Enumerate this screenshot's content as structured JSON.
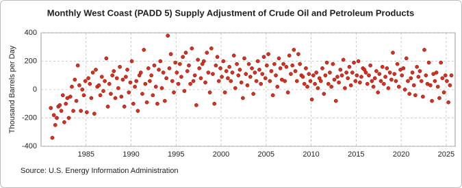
{
  "chart_data": {
    "type": "scatter",
    "title": "Monthly West Coast (PADD 5) Supply Adjustment of Crude Oil and Petroleum Products",
    "y_label": "Thousand Barrels per Day",
    "source": "Source: U.S. Energy Information Administration",
    "color": "#d7301f",
    "grid": true,
    "xlim": [
      1980,
      2026
    ],
    "xticks": [
      1985,
      1990,
      1995,
      2000,
      2005,
      2010,
      2015,
      2020,
      2025
    ],
    "ylim": [
      -400,
      400
    ],
    "yticks": [
      -400,
      -200,
      0,
      200,
      400
    ],
    "x": [
      1981.08,
      1981.25,
      1981.42,
      1981.58,
      1981.75,
      1981.92,
      1982.08,
      1982.25,
      1982.42,
      1982.58,
      1982.75,
      1982.92,
      1983.08,
      1983.25,
      1983.42,
      1983.58,
      1983.75,
      1983.92,
      1984.08,
      1984.25,
      1984.42,
      1984.58,
      1984.75,
      1984.92,
      1985.08,
      1985.25,
      1985.42,
      1985.58,
      1985.75,
      1985.92,
      1986.08,
      1986.25,
      1986.42,
      1986.58,
      1986.75,
      1986.92,
      1987.08,
      1987.25,
      1987.42,
      1987.58,
      1987.75,
      1987.92,
      1988.08,
      1988.25,
      1988.42,
      1988.58,
      1988.75,
      1988.92,
      1989.08,
      1989.25,
      1989.42,
      1989.58,
      1989.75,
      1989.92,
      1990.08,
      1990.25,
      1990.42,
      1990.58,
      1990.75,
      1990.92,
      1991.08,
      1991.25,
      1991.42,
      1991.58,
      1991.75,
      1991.92,
      1992.08,
      1992.25,
      1992.42,
      1992.58,
      1992.75,
      1992.92,
      1993.08,
      1993.25,
      1993.42,
      1993.58,
      1993.75,
      1993.92,
      1994.08,
      1994.25,
      1994.42,
      1994.58,
      1994.75,
      1994.92,
      1995.08,
      1995.25,
      1995.42,
      1995.58,
      1995.75,
      1995.92,
      1996.08,
      1996.25,
      1996.42,
      1996.58,
      1996.75,
      1996.92,
      1997.08,
      1997.25,
      1997.42,
      1997.58,
      1997.75,
      1997.92,
      1998.08,
      1998.25,
      1998.42,
      1998.58,
      1998.75,
      1998.92,
      1999.08,
      1999.25,
      1999.42,
      1999.58,
      1999.75,
      1999.92,
      2000.08,
      2000.25,
      2000.42,
      2000.58,
      2000.75,
      2000.92,
      2001.08,
      2001.25,
      2001.42,
      2001.58,
      2001.75,
      2001.92,
      2002.08,
      2002.25,
      2002.42,
      2002.58,
      2002.75,
      2002.92,
      2003.08,
      2003.25,
      2003.42,
      2003.58,
      2003.75,
      2003.92,
      2004.08,
      2004.25,
      2004.42,
      2004.58,
      2004.75,
      2004.92,
      2005.08,
      2005.25,
      2005.42,
      2005.58,
      2005.75,
      2005.92,
      2006.08,
      2006.25,
      2006.42,
      2006.58,
      2006.75,
      2006.92,
      2007.08,
      2007.25,
      2007.42,
      2007.58,
      2007.75,
      2007.92,
      2008.08,
      2008.25,
      2008.42,
      2008.58,
      2008.75,
      2008.92,
      2009.08,
      2009.25,
      2009.42,
      2009.58,
      2009.75,
      2009.92,
      2010.08,
      2010.25,
      2010.42,
      2010.58,
      2010.75,
      2010.92,
      2011.08,
      2011.25,
      2011.42,
      2011.58,
      2011.75,
      2011.92,
      2012.08,
      2012.25,
      2012.42,
      2012.58,
      2012.75,
      2012.92,
      2013.08,
      2013.25,
      2013.42,
      2013.58,
      2013.75,
      2013.92,
      2014.08,
      2014.25,
      2014.42,
      2014.58,
      2014.75,
      2014.92,
      2015.08,
      2015.25,
      2015.42,
      2015.58,
      2015.75,
      2015.92,
      2016.08,
      2016.25,
      2016.42,
      2016.58,
      2016.75,
      2016.92,
      2017.08,
      2017.25,
      2017.42,
      2017.58,
      2017.75,
      2017.92,
      2018.08,
      2018.25,
      2018.42,
      2018.58,
      2018.75,
      2018.92,
      2019.08,
      2019.25,
      2019.42,
      2019.58,
      2019.75,
      2019.92,
      2020.08,
      2020.25,
      2020.42,
      2020.58,
      2020.75,
      2020.92,
      2021.08,
      2021.25,
      2021.42,
      2021.58,
      2021.75,
      2021.92,
      2022.08,
      2022.25,
      2022.42,
      2022.58,
      2022.75,
      2022.92,
      2023.08,
      2023.25,
      2023.42,
      2023.58,
      2023.75,
      2023.92,
      2024.08,
      2024.25,
      2024.42,
      2024.58,
      2024.75,
      2024.92,
      2025.08,
      2025.25,
      2025.42,
      2025.58
    ],
    "values": [
      -130,
      -340,
      -180,
      -250,
      -200,
      -120,
      -110,
      -150,
      -40,
      -230,
      -100,
      -60,
      -200,
      -50,
      20,
      -150,
      70,
      -80,
      170,
      30,
      -150,
      0,
      -40,
      60,
      -160,
      80,
      40,
      -60,
      120,
      -170,
      140,
      20,
      30,
      -40,
      90,
      -10,
      60,
      220,
      -120,
      40,
      -30,
      100,
      130,
      -60,
      80,
      10,
      160,
      -50,
      70,
      -120,
      90,
      140,
      -20,
      50,
      200,
      -100,
      20,
      60,
      -150,
      100,
      120,
      -30,
      280,
      40,
      -90,
      150,
      60,
      100,
      -40,
      170,
      20,
      -100,
      140,
      200,
      10,
      120,
      -80,
      80,
      380,
      150,
      250,
      60,
      -20,
      190,
      120,
      40,
      180,
      90,
      230,
      -10,
      260,
      130,
      170,
      40,
      290,
      60,
      100,
      -110,
      210,
      150,
      80,
      180,
      200,
      50,
      260,
      120,
      -20,
      290,
      110,
      -100,
      170,
      230,
      60,
      150,
      90,
      200,
      -20,
      130,
      80,
      160,
      60,
      120,
      240,
      10,
      180,
      100,
      140,
      50,
      -60,
      220,
      110,
      30,
      180,
      90,
      150,
      -30,
      120,
      60,
      200,
      140,
      40,
      110,
      230,
      80,
      170,
      250,
      60,
      130,
      -40,
      180,
      100,
      20,
      220,
      150,
      70,
      180,
      60,
      160,
      -20,
      240,
      110,
      170,
      280,
      130,
      60,
      250,
      180,
      100,
      90,
      40,
      150,
      20,
      110,
      60,
      -70,
      100,
      40,
      120,
      10,
      80,
      60,
      150,
      -30,
      100,
      190,
      40,
      120,
      20,
      180,
      70,
      -80,
      90,
      50,
      140,
      100,
      210,
      10,
      120,
      80,
      160,
      30,
      120,
      190,
      60,
      100,
      200,
      50,
      90,
      150,
      140,
      120,
      40,
      100,
      170,
      60,
      20,
      80,
      130,
      -20,
      110,
      60,
      160,
      40,
      90,
      150,
      10,
      120,
      70,
      260,
      110,
      60,
      180,
      20,
      140,
      100,
      150,
      0,
      220,
      60,
      -30,
      80,
      120,
      30,
      -40,
      160,
      90,
      130,
      60,
      -50,
      280,
      100,
      40,
      190,
      30,
      -80,
      110,
      60,
      120,
      20,
      -60,
      190,
      80,
      -20,
      100,
      60,
      -90,
      30,
      100
    ]
  }
}
